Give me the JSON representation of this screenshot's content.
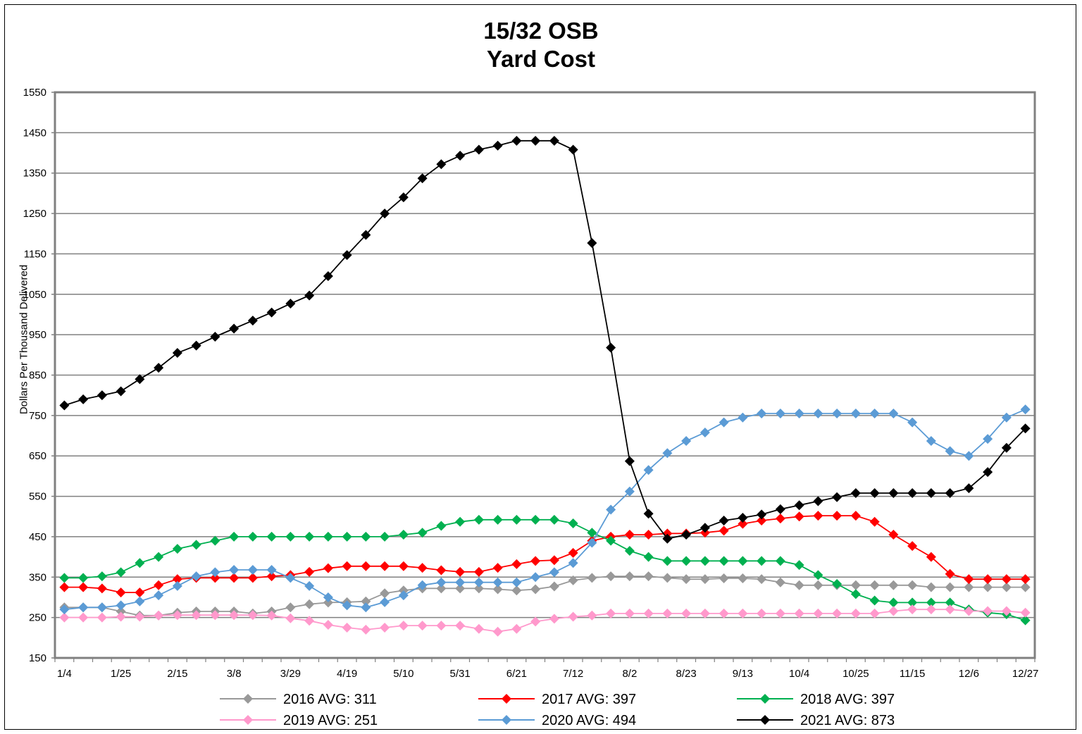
{
  "chart_data": {
    "type": "line",
    "title": [
      "15/32 OSB",
      "Yard Cost"
    ],
    "ylabel": "Dollars Per Thousand Delivered",
    "xlabel": "",
    "ylim": [
      150,
      1550
    ],
    "yticks": [
      150,
      250,
      350,
      450,
      550,
      650,
      750,
      850,
      950,
      1050,
      1150,
      1250,
      1350,
      1450,
      1550
    ],
    "grid": true,
    "legend_position": "bottom",
    "x_tick_labels": [
      "1/4",
      "1/25",
      "2/15",
      "3/8",
      "3/29",
      "4/19",
      "5/10",
      "5/31",
      "6/21",
      "7/12",
      "8/2",
      "8/23",
      "9/13",
      "10/4",
      "10/25",
      "11/15",
      "12/6",
      "12/27"
    ],
    "num_weeks": 52,
    "series": [
      {
        "name": "2016 AVG: 311",
        "color": "#999999",
        "values": [
          275,
          275,
          275,
          265,
          255,
          255,
          262,
          265,
          265,
          265,
          260,
          265,
          275,
          283,
          287,
          288,
          290,
          310,
          317,
          322,
          322,
          322,
          322,
          320,
          317,
          320,
          327,
          342,
          348,
          352,
          352,
          352,
          348,
          345,
          345,
          347,
          347,
          345,
          337,
          330,
          330,
          330,
          330,
          330,
          330,
          330,
          325,
          325,
          325,
          325,
          325,
          325
        ]
      },
      {
        "name": "2017 AVG: 397",
        "color": "#ff0000",
        "values": [
          325,
          325,
          322,
          312,
          312,
          330,
          345,
          348,
          348,
          348,
          348,
          352,
          355,
          363,
          372,
          377,
          377,
          377,
          377,
          373,
          367,
          363,
          363,
          373,
          382,
          390,
          392,
          410,
          440,
          450,
          455,
          455,
          458,
          458,
          460,
          465,
          482,
          490,
          495,
          500,
          502,
          502,
          502,
          487,
          455,
          427,
          400,
          358,
          345,
          345,
          345,
          345
        ]
      },
      {
        "name": "2018 AVG: 397",
        "color": "#00b050",
        "values": [
          348,
          348,
          352,
          362,
          385,
          400,
          420,
          430,
          440,
          450,
          450,
          450,
          450,
          450,
          450,
          450,
          450,
          450,
          455,
          460,
          477,
          487,
          492,
          492,
          492,
          492,
          492,
          483,
          460,
          440,
          415,
          400,
          390,
          390,
          390,
          390,
          390,
          390,
          390,
          380,
          355,
          333,
          308,
          292,
          287,
          287,
          287,
          287,
          270,
          262,
          258,
          243
        ]
      },
      {
        "name": "2019 AVG: 251",
        "color": "#ff99cc",
        "values": [
          250,
          250,
          250,
          252,
          252,
          255,
          256,
          256,
          256,
          256,
          256,
          255,
          248,
          242,
          232,
          225,
          220,
          225,
          230,
          230,
          230,
          230,
          222,
          215,
          222,
          240,
          247,
          252,
          255,
          260,
          260,
          260,
          260,
          260,
          260,
          260,
          260,
          260,
          260,
          260,
          260,
          260,
          260,
          260,
          266,
          270,
          270,
          270,
          266,
          266,
          266,
          262
        ]
      },
      {
        "name": "2020 AVG: 494",
        "color": "#5b9bd5",
        "values": [
          270,
          275,
          275,
          280,
          290,
          305,
          328,
          352,
          362,
          368,
          368,
          368,
          348,
          328,
          300,
          280,
          275,
          288,
          305,
          330,
          337,
          337,
          337,
          337,
          337,
          350,
          362,
          385,
          435,
          517,
          562,
          615,
          657,
          687,
          708,
          733,
          745,
          755,
          755,
          755,
          755,
          755,
          755,
          755,
          755,
          733,
          687,
          662,
          650,
          692,
          745,
          765
        ]
      },
      {
        "name": "2021 AVG: 873",
        "color": "#000000",
        "values": [
          775,
          790,
          800,
          810,
          840,
          868,
          905,
          923,
          945,
          965,
          985,
          1005,
          1027,
          1047,
          1095,
          1147,
          1197,
          1250,
          1290,
          1337,
          1372,
          1393,
          1408,
          1418,
          1430,
          1430,
          1430,
          1408,
          1177,
          918,
          637,
          507,
          445,
          455,
          472,
          490,
          497,
          505,
          518,
          528,
          538,
          548,
          558,
          558,
          558,
          558,
          558,
          558,
          570,
          610,
          670,
          718
        ]
      }
    ]
  }
}
